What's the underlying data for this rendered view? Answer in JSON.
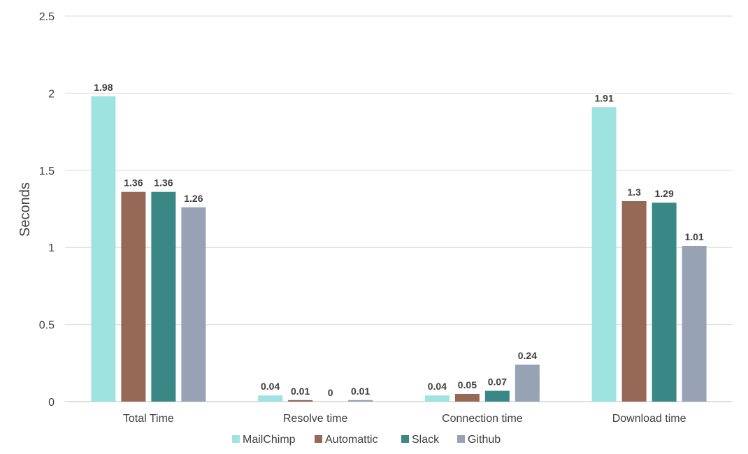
{
  "chart_data": {
    "type": "bar",
    "title": "",
    "xlabel": "",
    "ylabel": "Seconds",
    "ylim": [
      0,
      2.5
    ],
    "yticks": [
      "0",
      "0.5",
      "1",
      "1.5",
      "2",
      "2.5"
    ],
    "grid": true,
    "legend_position": "bottom",
    "categories": [
      "Total Time",
      "Resolve time",
      "Connection time",
      "Download time"
    ],
    "series": [
      {
        "name": "MailChimp",
        "color": "#9ee3e0",
        "values": [
          1.98,
          0.04,
          0.04,
          1.91
        ],
        "labels": [
          "1.98",
          "0.04",
          "0.04",
          "1.91"
        ]
      },
      {
        "name": "Automattic",
        "color": "#966856",
        "values": [
          1.36,
          0.01,
          0.05,
          1.3
        ],
        "labels": [
          "1.36",
          "0.01",
          "0.05",
          "1.3"
        ]
      },
      {
        "name": "Slack",
        "color": "#3a8886",
        "values": [
          1.36,
          0,
          0.07,
          1.29
        ],
        "labels": [
          "1.36",
          "0",
          "0.07",
          "1.29"
        ]
      },
      {
        "name": "Github",
        "color": "#97a3b5",
        "values": [
          1.26,
          0.01,
          0.24,
          1.01
        ],
        "labels": [
          "1.26",
          "0.01",
          "0.24",
          "1.01"
        ]
      }
    ]
  }
}
